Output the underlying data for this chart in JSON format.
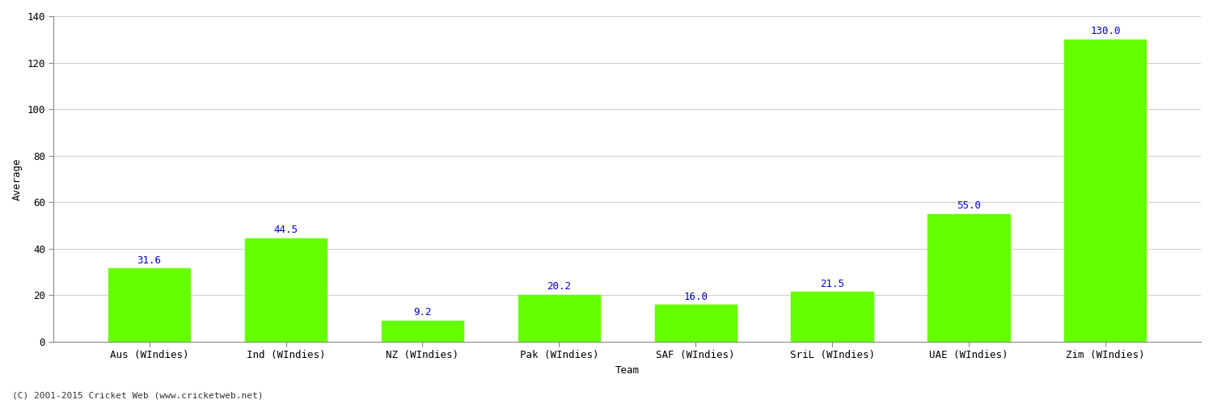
{
  "categories": [
    "Aus (WIndies)",
    "Ind (WIndies)",
    "NZ (WIndies)",
    "Pak (WIndies)",
    "SAF (WIndies)",
    "SriL (WIndies)",
    "UAE (WIndies)",
    "Zim (WIndies)"
  ],
  "values": [
    31.6,
    44.5,
    9.2,
    20.2,
    16.0,
    21.5,
    55.0,
    130.0
  ],
  "bar_color": "#66ff00",
  "bar_edge_color": "#66ff00",
  "label_color": "#0000cc",
  "ylabel": "Average",
  "xlabel": "Team",
  "ylim": [
    0,
    140
  ],
  "yticks": [
    0,
    20,
    40,
    60,
    80,
    100,
    120,
    140
  ],
  "footnote": "(C) 2001-2015 Cricket Web (www.cricketweb.net)",
  "background_color": "#ffffff",
  "grid_color": "#d0d0d0",
  "label_fontsize": 9,
  "axis_label_fontsize": 9,
  "value_fontsize": 9,
  "footnote_fontsize": 8,
  "bar_width": 0.6
}
